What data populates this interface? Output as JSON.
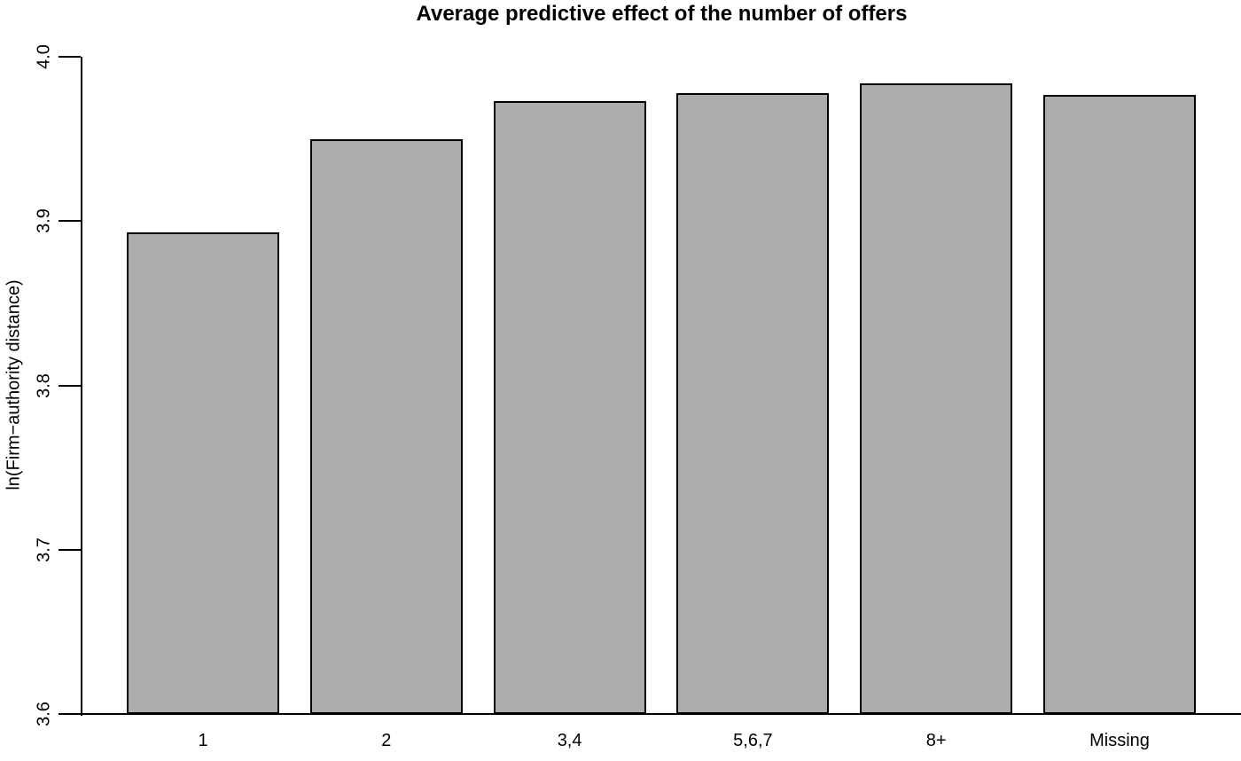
{
  "chart_data": {
    "type": "bar",
    "title": "Average predictive effect of the number of offers",
    "xlabel": "",
    "ylabel": "ln(Firm−authority distance)",
    "categories": [
      "1",
      "2",
      "3,4",
      "5,6,7",
      "8+",
      "Missing"
    ],
    "values": [
      3.893,
      3.95,
      3.973,
      3.978,
      3.984,
      3.977
    ],
    "ylim": [
      3.6,
      4.0
    ],
    "yticks": [
      3.6,
      3.7,
      3.8,
      3.9,
      4.0
    ],
    "ytick_decimals": 1,
    "grid": false,
    "legend_position": "none",
    "colors": {
      "bar_fill": "#adadad",
      "bar_border": "#000000",
      "axis": "#000000",
      "text": "#000000",
      "background": "#ffffff"
    }
  }
}
